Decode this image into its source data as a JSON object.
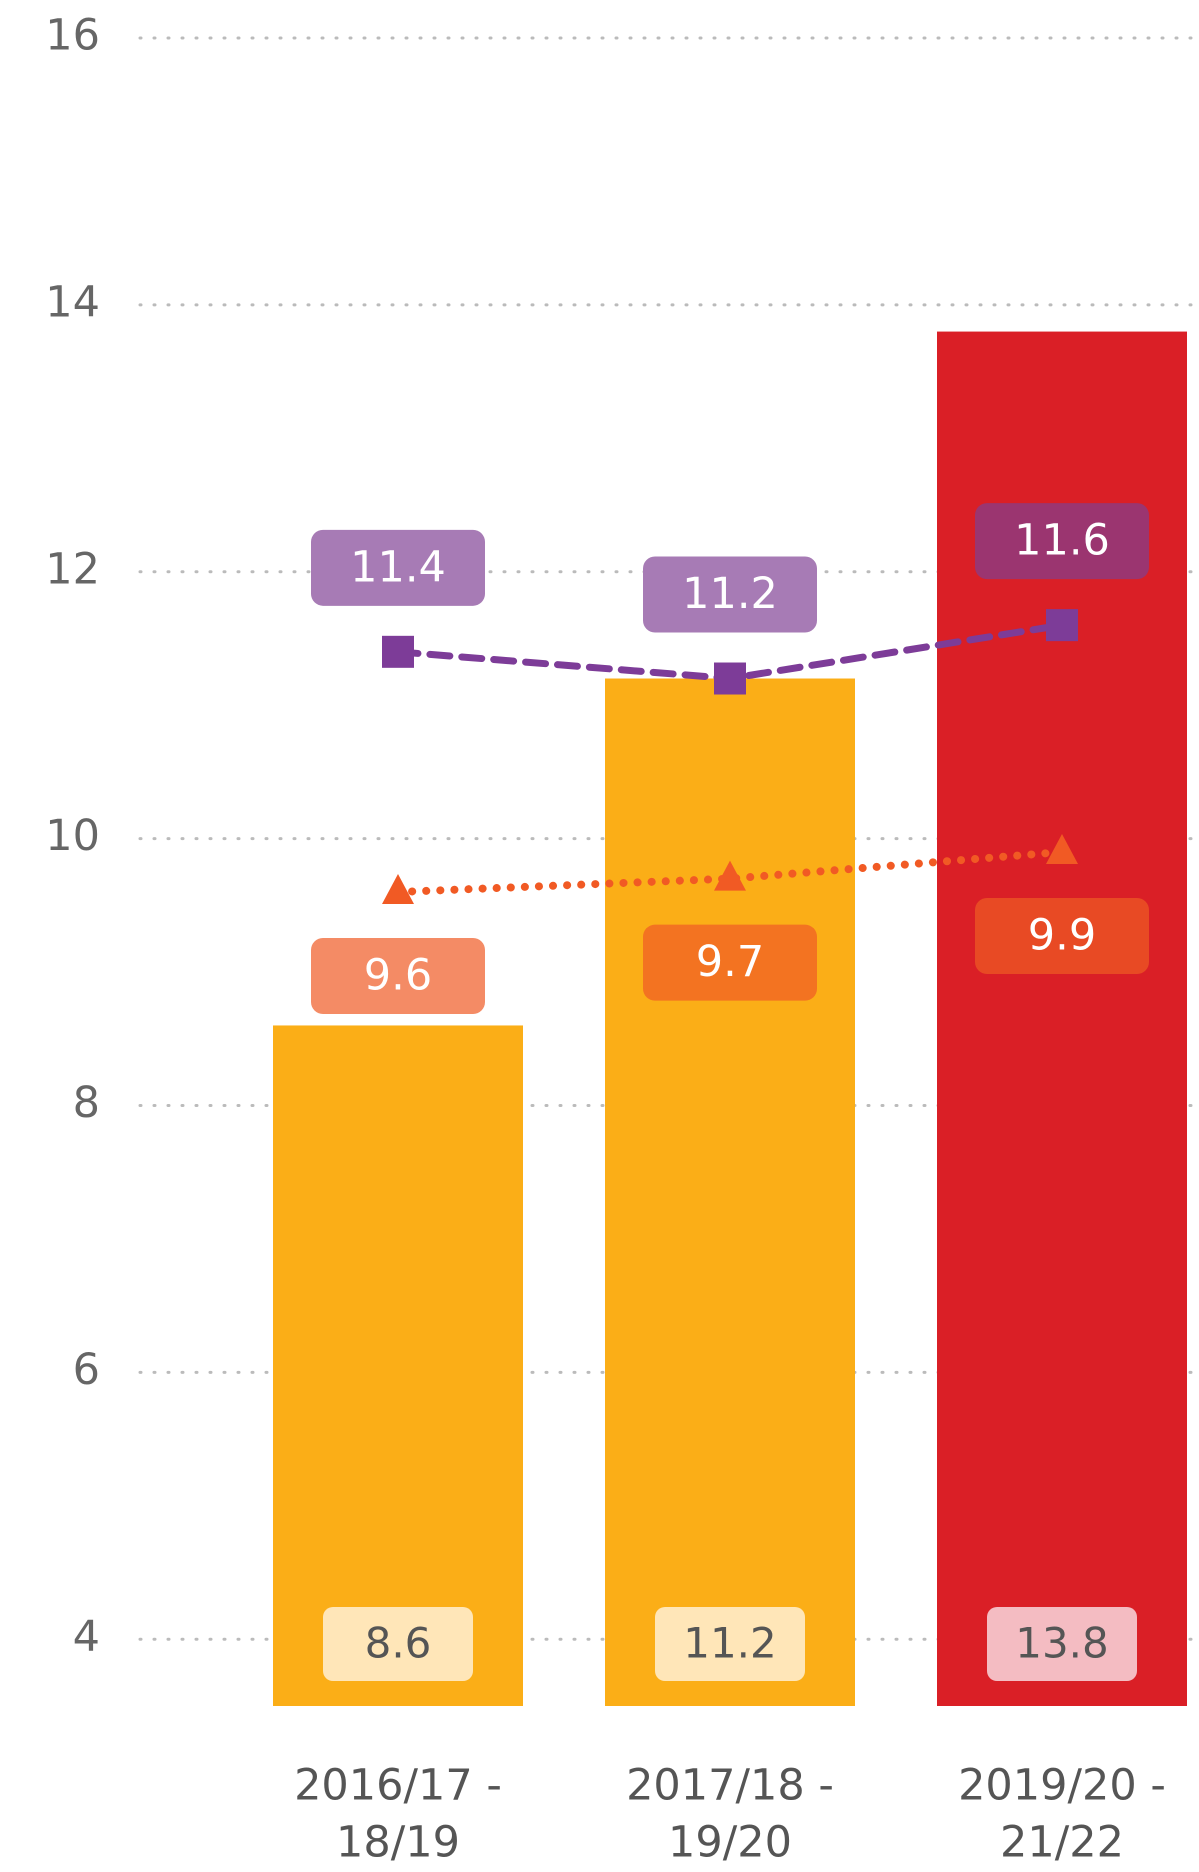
{
  "chart_data": {
    "type": "bar",
    "categories": [
      [
        "2016/17 -",
        "18/19"
      ],
      [
        "2017/18 -",
        "19/20"
      ],
      [
        "2019/20 -",
        "21/22"
      ]
    ],
    "values": [
      8.6,
      11.2,
      13.8
    ],
    "colors": [
      "#fbae17",
      "#fbae17",
      "#da1f26"
    ],
    "label_colors": [
      "#ffe6b8",
      "#ffe6b8",
      "#f4bcc2"
    ],
    "series": [
      {
        "type": "line",
        "color": "#7d3c98",
        "dash": "dashed",
        "marker": "square",
        "label_position": "above",
        "values": [
          11.4,
          11.2,
          11.6
        ],
        "label_colors": [
          "#a77bb5",
          "#a77bb5",
          "#9b3570"
        ]
      },
      {
        "type": "line",
        "color": "#f15a24",
        "dash": "dotted",
        "marker": "triangle",
        "label_position": "below",
        "values": [
          9.6,
          9.7,
          9.9
        ],
        "label_colors": [
          "#f48b65",
          "#f37321",
          "#e84a24"
        ]
      }
    ],
    "ylim": [
      3.5,
      16
    ],
    "yticks": [
      4,
      6,
      8,
      10,
      12,
      14,
      16
    ],
    "grid": true
  }
}
